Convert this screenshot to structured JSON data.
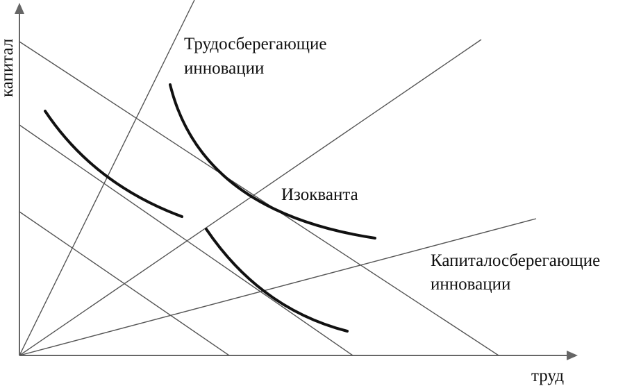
{
  "axes": {
    "y_label": "капитал",
    "x_label": "труд"
  },
  "labels": {
    "labor_saving": {
      "lines": [
        "Трудосберегающие",
        "инновации"
      ]
    },
    "isoquant": "Изокванта",
    "capital_saving": {
      "lines": [
        "Капиталосберегающие",
        "инновации"
      ]
    }
  }
}
